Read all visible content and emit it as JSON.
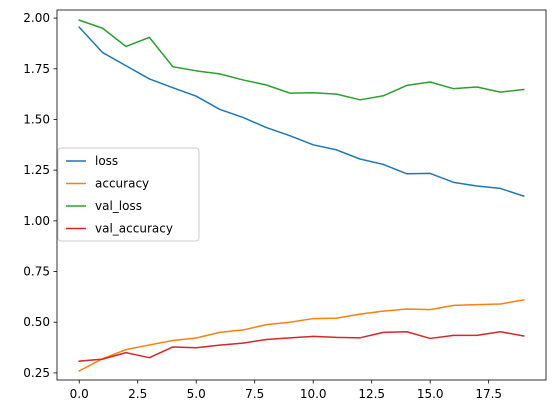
{
  "chart_data": {
    "type": "line",
    "title": "",
    "xlabel": "",
    "ylabel": "",
    "xlim": [
      -0.95,
      19.95
    ],
    "ylim": [
      0.215,
      2.04
    ],
    "grid": false,
    "legend_position": "center-left",
    "x": [
      0,
      1,
      2,
      3,
      4,
      5,
      6,
      7,
      8,
      9,
      10,
      11,
      12,
      13,
      14,
      15,
      16,
      17,
      18,
      19
    ],
    "x_ticks": [
      0.0,
      2.5,
      5.0,
      7.5,
      10.0,
      12.5,
      15.0,
      17.5
    ],
    "x_tick_labels": [
      "0.0",
      "2.5",
      "5.0",
      "7.5",
      "10.0",
      "12.5",
      "15.0",
      "17.5"
    ],
    "y_ticks": [
      0.25,
      0.5,
      0.75,
      1.0,
      1.25,
      1.5,
      1.75,
      2.0
    ],
    "y_tick_labels": [
      "0.25",
      "0.50",
      "0.75",
      "1.00",
      "1.25",
      "1.50",
      "1.75",
      "2.00"
    ],
    "series": [
      {
        "name": "loss",
        "color": "#1f77b4",
        "values": [
          1.955,
          1.83,
          1.765,
          1.7,
          1.657,
          1.615,
          1.55,
          1.51,
          1.46,
          1.42,
          1.375,
          1.35,
          1.305,
          1.278,
          1.232,
          1.234,
          1.19,
          1.172,
          1.16,
          1.122
        ]
      },
      {
        "name": "accuracy",
        "color": "#ff7f0e",
        "values": [
          0.26,
          0.32,
          0.365,
          0.388,
          0.41,
          0.422,
          0.45,
          0.462,
          0.488,
          0.5,
          0.518,
          0.52,
          0.54,
          0.555,
          0.565,
          0.562,
          0.583,
          0.587,
          0.59,
          0.61
        ]
      },
      {
        "name": "val_loss",
        "color": "#2ca02c",
        "values": [
          1.99,
          1.95,
          1.86,
          1.905,
          1.76,
          1.74,
          1.725,
          1.695,
          1.67,
          1.63,
          1.632,
          1.625,
          1.597,
          1.617,
          1.668,
          1.685,
          1.652,
          1.66,
          1.635,
          1.648
        ]
      },
      {
        "name": "val_accuracy",
        "color": "#d62728",
        "values": [
          0.308,
          0.318,
          0.35,
          0.325,
          0.378,
          0.374,
          0.387,
          0.397,
          0.415,
          0.423,
          0.43,
          0.425,
          0.423,
          0.45,
          0.453,
          0.42,
          0.435,
          0.435,
          0.453,
          0.432
        ]
      }
    ]
  }
}
